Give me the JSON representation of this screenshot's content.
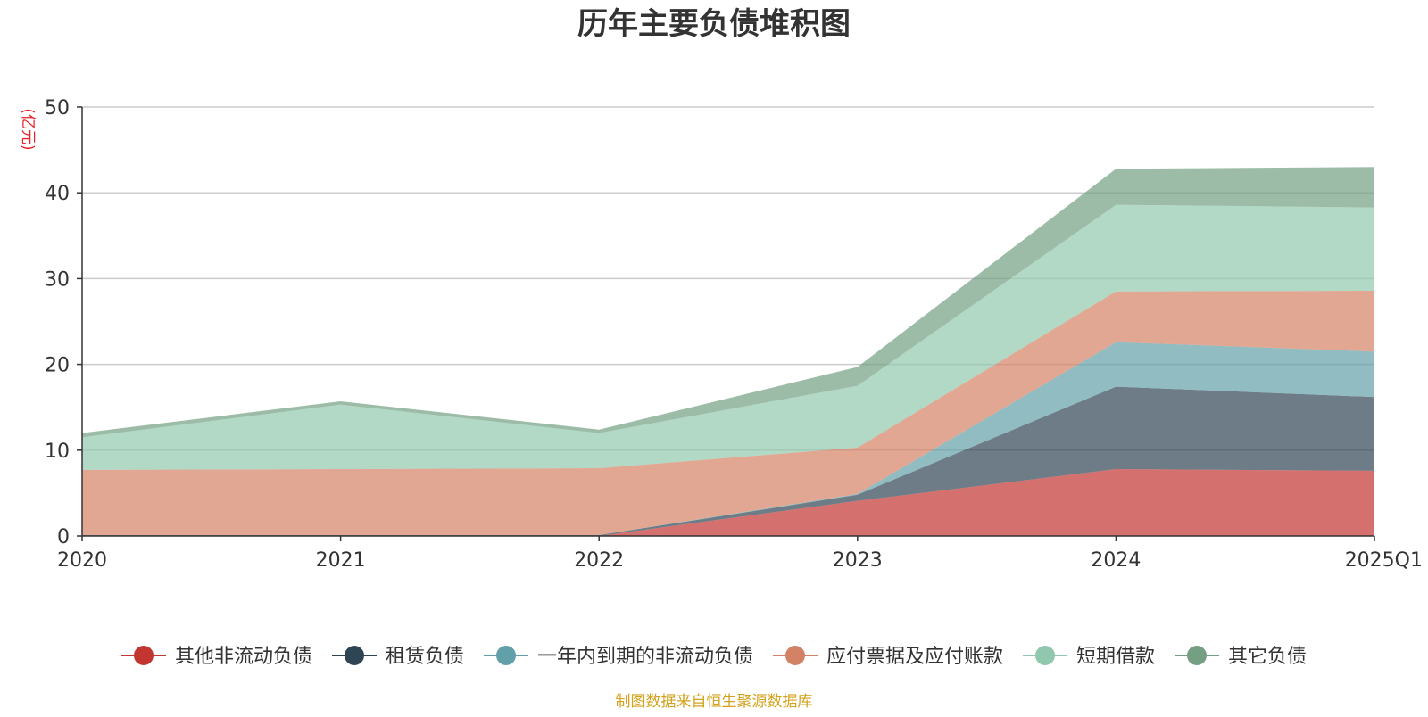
{
  "chart_data": {
    "type": "area",
    "stacked": true,
    "title": "历年主要负债堆积图",
    "unit_label": "(亿元)",
    "source_text": "制图数据来自恒生聚源数据库",
    "x": [
      "2020",
      "2021",
      "2022",
      "2023",
      "2024",
      "2025Q1"
    ],
    "ylim": [
      0,
      50
    ],
    "yticks": [
      0,
      10,
      20,
      30,
      40,
      50
    ],
    "grid": true,
    "legend_position": "bottom",
    "series": [
      {
        "name": "其他非流动负债",
        "color": "#c23531",
        "values": [
          0,
          0,
          0,
          4.1,
          7.8,
          7.6
        ]
      },
      {
        "name": "租赁负债",
        "color": "#2f4554",
        "values": [
          0.1,
          0.1,
          0.1,
          0.7,
          9.6,
          8.6
        ]
      },
      {
        "name": "一年内到期的非流动负债",
        "color": "#61a0a8",
        "values": [
          0,
          0,
          0,
          0.1,
          5.2,
          5.3
        ]
      },
      {
        "name": "应付票据及应付账款",
        "color": "#d48265",
        "values": [
          7.6,
          7.7,
          7.8,
          5.4,
          5.9,
          7.1
        ]
      },
      {
        "name": "短期借款",
        "color": "#91c7ae",
        "values": [
          3.8,
          7.5,
          4.1,
          7.2,
          10.1,
          9.7
        ]
      },
      {
        "name": "其它负债",
        "color": "#749f83",
        "values": [
          0.5,
          0.4,
          0.4,
          2.2,
          4.2,
          4.7
        ]
      }
    ]
  }
}
